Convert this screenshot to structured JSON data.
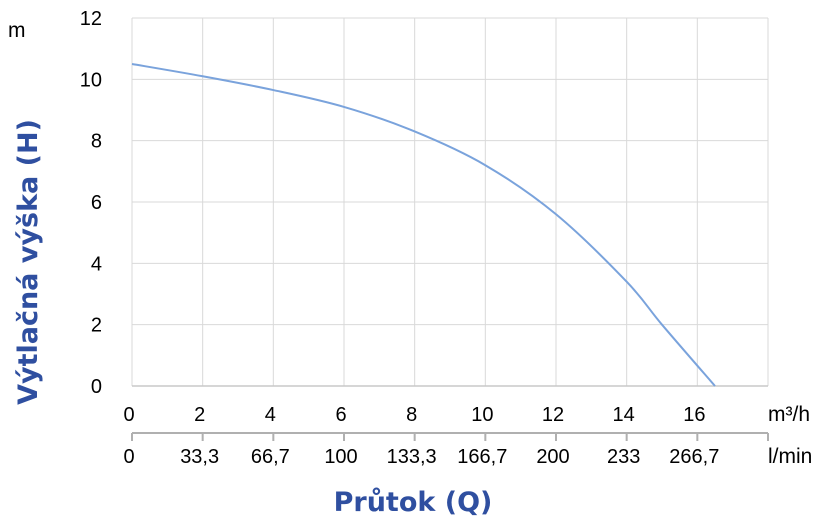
{
  "chart_data": {
    "type": "line",
    "y_unit": "m",
    "ylabel": "Výtlačná výška (H)",
    "xlabel": "Průtok (Q)",
    "x_unit_primary": "m³/h",
    "x_unit_secondary": "l/min",
    "xlim": [
      0,
      18
    ],
    "ylim": [
      0,
      12
    ],
    "x_ticks": [
      {
        "value": 0,
        "label": "0"
      },
      {
        "value": 2,
        "label": "2"
      },
      {
        "value": 4,
        "label": "4"
      },
      {
        "value": 6,
        "label": "6"
      },
      {
        "value": 8,
        "label": "8"
      },
      {
        "value": 10,
        "label": "10"
      },
      {
        "value": 12,
        "label": "12"
      },
      {
        "value": 14,
        "label": "14"
      },
      {
        "value": 16,
        "label": "16"
      }
    ],
    "x_ticks_secondary": [
      {
        "value": 0,
        "label": "0"
      },
      {
        "value": 2,
        "label": "33,3"
      },
      {
        "value": 4,
        "label": "66,7"
      },
      {
        "value": 6,
        "label": "100"
      },
      {
        "value": 8,
        "label": "133,3"
      },
      {
        "value": 10,
        "label": "166,7"
      },
      {
        "value": 12,
        "label": "200"
      },
      {
        "value": 14,
        "label": "233"
      },
      {
        "value": 16,
        "label": "266,7"
      }
    ],
    "y_ticks": [
      {
        "value": 0,
        "label": "0"
      },
      {
        "value": 2,
        "label": "2"
      },
      {
        "value": 4,
        "label": "4"
      },
      {
        "value": 6,
        "label": "6"
      },
      {
        "value": 8,
        "label": "8"
      },
      {
        "value": 10,
        "label": "10"
      },
      {
        "value": 12,
        "label": "12"
      }
    ],
    "grid": true,
    "series": [
      {
        "color": "#7aa3dc",
        "points": [
          {
            "x": 0,
            "y": 10.5
          },
          {
            "x": 2,
            "y": 10.1
          },
          {
            "x": 4,
            "y": 9.65
          },
          {
            "x": 6,
            "y": 9.1
          },
          {
            "x": 8,
            "y": 8.3
          },
          {
            "x": 10,
            "y": 7.2
          },
          {
            "x": 12,
            "y": 5.6
          },
          {
            "x": 14,
            "y": 3.4
          },
          {
            "x": 15,
            "y": 2.0
          },
          {
            "x": 16.5,
            "y": 0
          }
        ]
      }
    ]
  }
}
